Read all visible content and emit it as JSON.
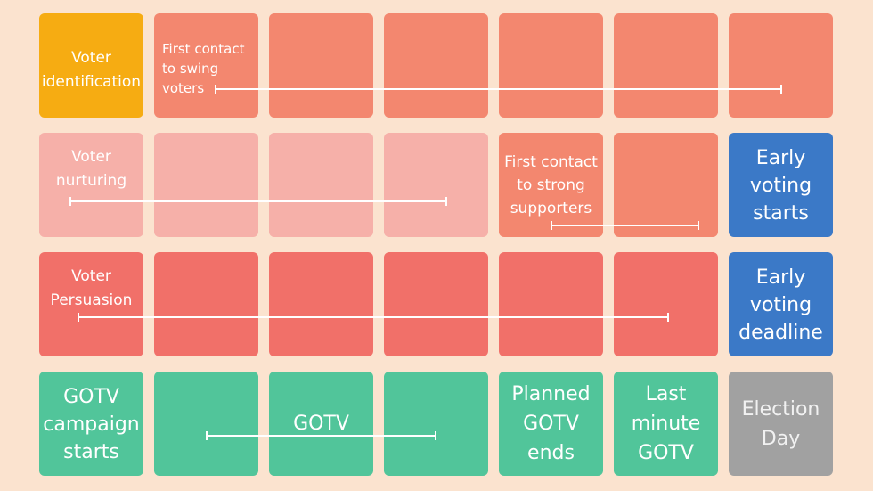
{
  "colors": {
    "background": "#fbe3cf",
    "orange": "#f6ac12",
    "salmon": "#f3876f",
    "pink": "#f6b0a9",
    "coral": "#f17069",
    "blue": "#3b79c7",
    "green": "#51c59a",
    "gray": "#a1a1a1"
  },
  "rows": [
    {
      "cells": [
        {
          "color": "orange",
          "label": "Voter\nidentification"
        },
        {
          "color": "salmon",
          "label": "First contact\nto swing\nvoters"
        },
        {
          "color": "salmon",
          "label": ""
        },
        {
          "color": "salmon",
          "label": ""
        },
        {
          "color": "salmon",
          "label": ""
        },
        {
          "color": "salmon",
          "label": ""
        },
        {
          "color": "salmon",
          "label": ""
        }
      ]
    },
    {
      "cells": [
        {
          "color": "pink",
          "label": "Voter\nnurturing"
        },
        {
          "color": "pink",
          "label": ""
        },
        {
          "color": "pink",
          "label": ""
        },
        {
          "color": "pink",
          "label": ""
        },
        {
          "color": "salmon",
          "label": "First contact\nto strong\nsupporters"
        },
        {
          "color": "salmon",
          "label": ""
        },
        {
          "color": "blue",
          "label": "Early\nvoting\nstarts"
        }
      ]
    },
    {
      "cells": [
        {
          "color": "coral",
          "label": "Voter\nPersuasion"
        },
        {
          "color": "coral",
          "label": ""
        },
        {
          "color": "coral",
          "label": ""
        },
        {
          "color": "coral",
          "label": ""
        },
        {
          "color": "coral",
          "label": ""
        },
        {
          "color": "coral",
          "label": ""
        },
        {
          "color": "blue",
          "label": "Early\nvoting\ndeadline"
        }
      ]
    },
    {
      "cells": [
        {
          "color": "green",
          "label": "GOTV\ncampaign\nstarts"
        },
        {
          "color": "green",
          "label": ""
        },
        {
          "color": "green",
          "label": "GOTV"
        },
        {
          "color": "green",
          "label": ""
        },
        {
          "color": "green",
          "label": "Planned\nGOTV\nends"
        },
        {
          "color": "green",
          "label": "Last\nminute\nGOTV"
        },
        {
          "color": "gray",
          "label": "Election\nDay"
        }
      ]
    }
  ]
}
